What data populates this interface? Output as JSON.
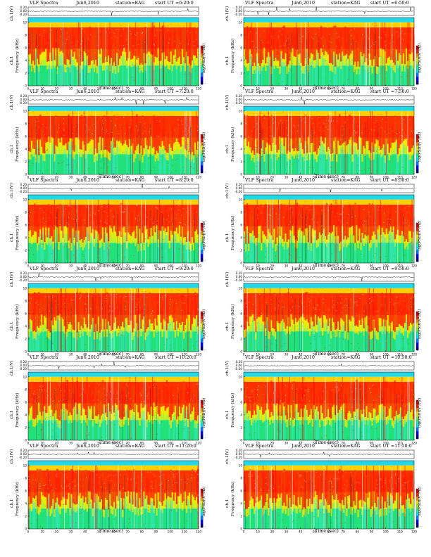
{
  "chart_data": [
    {
      "type": "heatmap",
      "header": {
        "title": "VLF Spectra",
        "date": "Jun6,2010",
        "station": "station=KAG",
        "start": "start  UT =6:20:0"
      },
      "top_ylabel": "ch.1(V)",
      "top_ticks": [
        "0.20",
        "0.00",
        "-0.20"
      ],
      "ylabel": "Frequency  (kHz)",
      "ylabel_ch": "ch.1",
      "y_ticks": [
        "0",
        "2",
        "4",
        "6",
        "8",
        "10"
      ],
      "xlabel": "Time  (sec)",
      "x_ticks": [
        "0",
        "10",
        "20",
        "30",
        "40",
        "50",
        "60",
        "70",
        "80",
        "90",
        "100",
        "110",
        "120"
      ],
      "colorbar_label": "log(PSD)(V²/Hz)",
      "colorbar_ticks": [
        "-",
        "-"
      ],
      "xlim": [
        0,
        120
      ],
      "ylim": [
        0,
        10
      ]
    },
    {
      "type": "heatmap",
      "header": {
        "title": "VLF Spectra",
        "date": "Jun6,2010",
        "station": "station=KAG",
        "start": "start  UT =6:50:0"
      },
      "top_ylabel": "ch.1(V)",
      "top_ticks": [
        "0.20",
        "0.00",
        "-0.20"
      ],
      "ylabel": "Frequency  (kHz)",
      "ylabel_ch": "ch.1",
      "y_ticks": [
        "0",
        "2",
        "4",
        "6",
        "8",
        "10"
      ],
      "xlabel": "Time  (sec)",
      "x_ticks": [
        "0",
        "10",
        "20",
        "30",
        "40",
        "50",
        "60",
        "70",
        "80",
        "90",
        "100",
        "110",
        "120"
      ],
      "colorbar_label": "log(PSD)(V²/Hz)",
      "colorbar_ticks": [
        "-",
        "-"
      ],
      "xlim": [
        0,
        120
      ],
      "ylim": [
        0,
        10
      ]
    },
    {
      "type": "heatmap",
      "header": {
        "title": "VLF Spectra",
        "date": "Jun6,2010",
        "station": "station=KAG",
        "start": "start  UT =7:20:0"
      },
      "top_ylabel": "ch.1(V)",
      "top_ticks": [
        "0.20",
        "0.00",
        "-0.20"
      ],
      "ylabel": "Frequency  (kHz)",
      "ylabel_ch": "ch.1",
      "y_ticks": [
        "0",
        "2",
        "4",
        "6",
        "8",
        "10"
      ],
      "xlabel": "Time  (sec)",
      "x_ticks": [
        "0",
        "10",
        "20",
        "30",
        "40",
        "50",
        "60",
        "70",
        "80",
        "90",
        "100",
        "110",
        "120"
      ],
      "colorbar_label": "log(PSD)(V²/Hz)",
      "colorbar_ticks": [
        "-",
        "-"
      ],
      "xlim": [
        0,
        120
      ],
      "ylim": [
        0,
        10
      ]
    },
    {
      "type": "heatmap",
      "header": {
        "title": "VLF Spectra",
        "date": "Jun6,2010",
        "station": "station=KAG",
        "start": "start  UT =7:50:0"
      },
      "top_ylabel": "ch.1(V)",
      "top_ticks": [
        "0.20",
        "0.00",
        "-0.20"
      ],
      "ylabel": "Frequency  (kHz)",
      "ylabel_ch": "ch.1",
      "y_ticks": [
        "0",
        "2",
        "4",
        "6",
        "8",
        "10"
      ],
      "xlabel": "Time  (sec)",
      "x_ticks": [
        "0",
        "10",
        "20",
        "30",
        "40",
        "50",
        "60",
        "70",
        "80",
        "90",
        "100",
        "110",
        "120"
      ],
      "colorbar_label": "log(PSD)(V²/Hz)",
      "colorbar_ticks": [
        "-",
        "-"
      ],
      "xlim": [
        0,
        120
      ],
      "ylim": [
        0,
        10
      ]
    },
    {
      "type": "heatmap",
      "header": {
        "title": "VLF Spectra",
        "date": "Jun6,2010",
        "station": "station=KAG",
        "start": "start  UT =8:20:0"
      },
      "top_ylabel": "ch.1(V)",
      "top_ticks": [
        "0.20",
        "0.00",
        "-0.20"
      ],
      "ylabel": "Frequency  (kHz)",
      "ylabel_ch": "ch.1",
      "y_ticks": [
        "0",
        "2",
        "4",
        "6",
        "8",
        "10"
      ],
      "xlabel": "Time  (sec)",
      "x_ticks": [
        "0",
        "10",
        "20",
        "30",
        "40",
        "50",
        "60",
        "70",
        "80",
        "90",
        "100",
        "110",
        "120"
      ],
      "colorbar_label": "log(PSD)(V²/Hz)",
      "colorbar_ticks": [
        "-",
        "-"
      ],
      "xlim": [
        0,
        120
      ],
      "ylim": [
        0,
        10
      ]
    },
    {
      "type": "heatmap",
      "header": {
        "title": "VLF Spectra",
        "date": "Jun6,2010",
        "station": "station=KAG",
        "start": "start  UT =8:50:0"
      },
      "top_ylabel": "ch.1(V)",
      "top_ticks": [
        "0.20",
        "0.00",
        "-0.20"
      ],
      "ylabel": "Frequency  (kHz)",
      "ylabel_ch": "ch.1",
      "y_ticks": [
        "0",
        "2",
        "4",
        "6",
        "8",
        "10"
      ],
      "xlabel": "Time  (sec)",
      "x_ticks": [
        "0",
        "10",
        "20",
        "30",
        "40",
        "50",
        "60",
        "70",
        "80",
        "90",
        "100",
        "110",
        "120"
      ],
      "colorbar_label": "log(PSD)(V²/Hz)",
      "colorbar_ticks": [
        "-",
        "-"
      ],
      "xlim": [
        0,
        120
      ],
      "ylim": [
        0,
        10
      ]
    },
    {
      "type": "heatmap",
      "header": {
        "title": "VLF Spectra",
        "date": "Jun6,2010",
        "station": "station=KAG",
        "start": "start  UT =9:20:0"
      },
      "top_ylabel": "ch.1(V)",
      "top_ticks": [
        "0.20",
        "0.00",
        "-0.20"
      ],
      "ylabel": "Frequency  (kHz)",
      "ylabel_ch": "ch.1",
      "y_ticks": [
        "0",
        "2",
        "4",
        "6",
        "8",
        "10"
      ],
      "xlabel": "Time  (sec)",
      "x_ticks": [
        "0",
        "10",
        "20",
        "30",
        "40",
        "50",
        "60",
        "70",
        "80",
        "90",
        "100",
        "110",
        "120"
      ],
      "colorbar_label": "log(PSD)(V²/Hz)",
      "colorbar_ticks": [
        "-",
        "-"
      ],
      "xlim": [
        0,
        120
      ],
      "ylim": [
        0,
        10
      ]
    },
    {
      "type": "heatmap",
      "header": {
        "title": "VLF Spectra",
        "date": "Jun6,2010",
        "station": "station=KAG",
        "start": "start  UT =9:50:0"
      },
      "top_ylabel": "ch.1(V)",
      "top_ticks": [
        "0.20",
        "0.00",
        "-0.20"
      ],
      "ylabel": "Frequency  (kHz)",
      "ylabel_ch": "ch.1",
      "y_ticks": [
        "0",
        "2",
        "4",
        "6",
        "8",
        "10"
      ],
      "xlabel": "Time  (sec)",
      "x_ticks": [
        "0",
        "10",
        "20",
        "30",
        "40",
        "50",
        "60",
        "70",
        "80",
        "90",
        "100",
        "110",
        "120"
      ],
      "colorbar_label": "log(PSD)(V²/Hz)",
      "colorbar_ticks": [
        "-",
        "-"
      ],
      "xlim": [
        0,
        120
      ],
      "ylim": [
        0,
        10
      ]
    },
    {
      "type": "heatmap",
      "header": {
        "title": "VLF Spectra",
        "date": "Jun6,2010",
        "station": "station=KAG",
        "start": "start  UT =10:20:0"
      },
      "top_ylabel": "ch.1(V)",
      "top_ticks": [
        "0.20",
        "0.00",
        "-0.20"
      ],
      "ylabel": "Frequency  (kHz)",
      "ylabel_ch": "ch.1",
      "y_ticks": [
        "0",
        "2",
        "4",
        "6",
        "8",
        "10"
      ],
      "xlabel": "Time  (sec)",
      "x_ticks": [
        "0",
        "10",
        "20",
        "30",
        "40",
        "50",
        "60",
        "70",
        "80",
        "90",
        "100",
        "110",
        "120"
      ],
      "colorbar_label": "log(PSD)(V²/Hz)",
      "colorbar_ticks": [
        "-",
        "-"
      ],
      "xlim": [
        0,
        120
      ],
      "ylim": [
        0,
        10
      ]
    },
    {
      "type": "heatmap",
      "header": {
        "title": "VLF Spectra",
        "date": "Jun6,2010",
        "station": "station=KAG",
        "start": "start  UT =10:50:0"
      },
      "top_ylabel": "ch.1(V)",
      "top_ticks": [
        "0.20",
        "0.00",
        "-0.20"
      ],
      "ylabel": "Frequency  (kHz)",
      "ylabel_ch": "ch.1",
      "y_ticks": [
        "0",
        "2",
        "4",
        "6",
        "8",
        "10"
      ],
      "xlabel": "Time  (sec)",
      "x_ticks": [
        "0",
        "10",
        "20",
        "30",
        "40",
        "50",
        "60",
        "70",
        "80",
        "90",
        "100",
        "110",
        "120"
      ],
      "colorbar_label": "log(PSD)(V²/Hz)",
      "colorbar_ticks": [
        "-",
        "-"
      ],
      "xlim": [
        0,
        120
      ],
      "ylim": [
        0,
        10
      ]
    },
    {
      "type": "heatmap",
      "header": {
        "title": "VLF Spectra",
        "date": "Jun6,2010",
        "station": "station=KAG",
        "start": "start  UT =11:20:0"
      },
      "top_ylabel": "ch.1(V)",
      "top_ticks": [
        "0.20",
        "0.00",
        "-0.20"
      ],
      "ylabel": "Frequency  (kHz)",
      "ylabel_ch": "ch.1",
      "y_ticks": [
        "0",
        "2",
        "4",
        "6",
        "8",
        "10"
      ],
      "xlabel": "Time  (sec)",
      "x_ticks": [
        "0",
        "10",
        "20",
        "30",
        "40",
        "50",
        "60",
        "70",
        "80",
        "90",
        "100",
        "110",
        "120"
      ],
      "colorbar_label": "log(PSD)(V²/Hz)",
      "colorbar_ticks": [
        "-",
        "-"
      ],
      "xlim": [
        0,
        120
      ],
      "ylim": [
        0,
        10
      ]
    },
    {
      "type": "heatmap",
      "header": {
        "title": "VLF Spectra",
        "date": "Jun6,2010",
        "station": "station=KAG",
        "start": "start  UT =11:50:0"
      },
      "top_ylabel": "ch.1(V)",
      "top_ticks": [
        "0.20",
        "0.00",
        "-0.20"
      ],
      "ylabel": "Frequency  (kHz)",
      "ylabel_ch": "ch.1",
      "y_ticks": [
        "0",
        "2",
        "4",
        "6",
        "8",
        "10"
      ],
      "xlabel": "Time  (sec)",
      "x_ticks": [
        "0",
        "10",
        "20",
        "30",
        "40",
        "50",
        "60",
        "70",
        "80",
        "90",
        "100",
        "110",
        "120"
      ],
      "colorbar_label": "log(PSD)(V²/Hz)",
      "colorbar_ticks": [
        "-",
        "-"
      ],
      "xlim": [
        0,
        120
      ],
      "ylim": [
        0,
        10
      ]
    }
  ],
  "colors": {
    "colormap": [
      "#00007a",
      "#0000ff",
      "#0077ff",
      "#00e0ff",
      "#18ff90",
      "#a0ff30",
      "#ffff00",
      "#ff9a00",
      "#ff2400",
      "#d80000",
      "#ffffff"
    ],
    "spectrum_bands": [
      "#ff2a00",
      "#ffd800",
      "#1ee84c",
      "#2ae0ff"
    ],
    "trace": "#000000"
  }
}
